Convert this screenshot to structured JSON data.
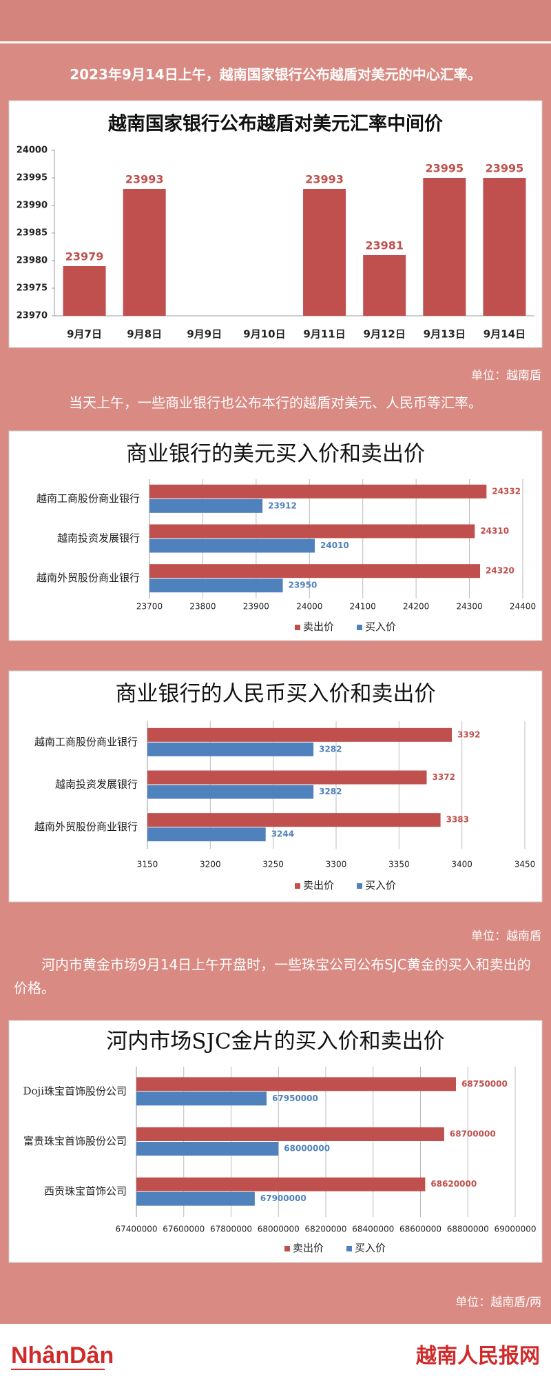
{
  "texts": {
    "intro": "2023年9月14日上午，越南国家银行公布越盾对美元的中心汇率。",
    "unit1": "单位：越南盾",
    "intro2": "当天上午，一些商业银行也公布本行的越盾对美元、人民币等汇率。",
    "unit2": "单位：越南盾",
    "intro3": "河内市黄金市场9月14日上午开盘时，一些珠宝公司公布SJC黄金的买入和卖出的价格。",
    "unit3": "单位：越南盾/两"
  },
  "footer": {
    "logo": "NhânDân",
    "site": "越南人民报网"
  },
  "chart_data": [
    {
      "type": "bar",
      "title": "越南国家银行公布越盾对美元汇率中间价",
      "categories": [
        "9月7日",
        "9月8日",
        "9月9日",
        "9月10日",
        "9月11日",
        "9月12日",
        "9月13日",
        "9月14日"
      ],
      "values": [
        23979,
        23993,
        null,
        null,
        23993,
        23981,
        23995,
        23995
      ],
      "color": "#c0504d",
      "ylim": [
        23970,
        24000
      ],
      "yticks": [
        23970,
        23975,
        23980,
        23985,
        23990,
        23995,
        24000
      ],
      "grid": false
    },
    {
      "type": "hbar",
      "title": "商业银行的美元买入价和卖出价",
      "categories": [
        "越南工商股份商业银行",
        "越南投资发展银行",
        "越南外贸股份商业银行"
      ],
      "series": [
        {
          "name": "卖出价",
          "color": "#c0504d",
          "values": [
            24332,
            24310,
            24320
          ]
        },
        {
          "name": "买入价",
          "color": "#4f81bd",
          "values": [
            23912,
            24010,
            23950
          ]
        }
      ],
      "xlim": [
        23700,
        24400
      ],
      "xticks": [
        23700,
        23800,
        23900,
        24000,
        24100,
        24200,
        24300,
        24400
      ],
      "grid": true,
      "legend": "bottom"
    },
    {
      "type": "hbar",
      "title": "商业银行的人民币买入价和卖出价",
      "categories": [
        "越南工商股份商业银行",
        "越南投资发展银行",
        "越南外贸股份商业银行"
      ],
      "series": [
        {
          "name": "卖出价",
          "color": "#c0504d",
          "values": [
            3392,
            3372,
            3383
          ]
        },
        {
          "name": "买入价",
          "color": "#4f81bd",
          "values": [
            3282,
            3282,
            3244
          ]
        }
      ],
      "xlim": [
        3150,
        3450
      ],
      "xticks": [
        3150,
        3200,
        3250,
        3300,
        3350,
        3400,
        3450
      ],
      "grid": true,
      "legend": "bottom"
    },
    {
      "type": "hbar",
      "title": "河内市场SJC金片的买入价和卖出价",
      "categories": [
        "Doji珠宝首饰股份公司",
        "富贵珠宝首饰股份公司",
        "西贡珠宝首饰公司"
      ],
      "series": [
        {
          "name": "卖出价",
          "color": "#c0504d",
          "values": [
            68750000,
            68700000,
            68620000
          ]
        },
        {
          "name": "买入价",
          "color": "#4f81bd",
          "values": [
            67950000,
            68000000,
            67900000
          ]
        }
      ],
      "xlim": [
        67400000,
        69000000
      ],
      "xticks": [
        67400000,
        67600000,
        67800000,
        68000000,
        68200000,
        68400000,
        68600000,
        68800000,
        69000000
      ],
      "grid": true,
      "legend": "bottom"
    }
  ]
}
